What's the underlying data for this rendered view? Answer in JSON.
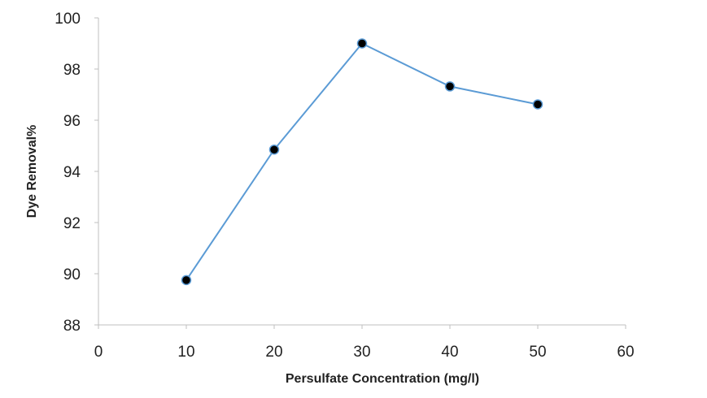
{
  "chart_data": {
    "type": "line",
    "xlabel": "Persulfate Concentration (mg/l)",
    "ylabel": "Dye Removal%",
    "xlim": [
      0,
      60
    ],
    "ylim": [
      88,
      100
    ],
    "xticks": [
      0,
      10,
      20,
      30,
      40,
      50,
      60
    ],
    "yticks": [
      88,
      90,
      92,
      94,
      96,
      98,
      100
    ],
    "grid": false,
    "legend": "none",
    "series": [
      {
        "x": [
          10,
          20,
          30,
          40,
          50
        ],
        "y": [
          89.75,
          94.85,
          99.0,
          97.32,
          96.62
        ],
        "line_color": "#5b9bd5",
        "marker_color": "#000000"
      }
    ]
  }
}
